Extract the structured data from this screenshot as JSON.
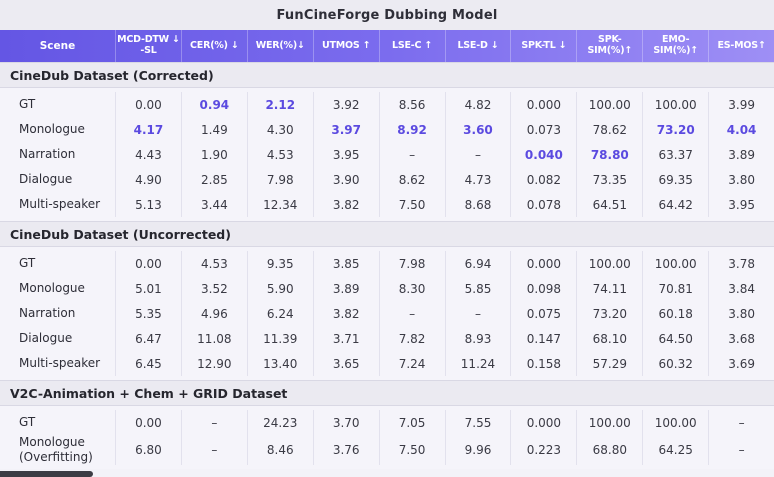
{
  "title": "FunCineForge Dubbing Model",
  "colors": {
    "accent": "#5b4ae0",
    "header_gradient_left": "#6456e4",
    "header_gradient_right": "#9e8ff5",
    "band_bg": "#ebeaf1",
    "rows_bg": "#f5f4fa"
  },
  "table": {
    "columns": [
      {
        "key": "scene",
        "label": "Scene"
      },
      {
        "key": "mcd-dtw-sl",
        "label": "MCD-DTW ↓\n-SL"
      },
      {
        "key": "cer",
        "label": "CER(%) ↓"
      },
      {
        "key": "wer",
        "label": "WER(%)↓"
      },
      {
        "key": "utmos",
        "label": "UTMOS ↑"
      },
      {
        "key": "lse-c",
        "label": "LSE-C ↑"
      },
      {
        "key": "lse-d",
        "label": "LSE-D ↓"
      },
      {
        "key": "spk-tl",
        "label": "SPK-TL ↓"
      },
      {
        "key": "spk-sim",
        "label": "SPK-SIM(%)↑"
      },
      {
        "key": "emo-sim",
        "label": "EMO-SIM(%)↑"
      },
      {
        "key": "es-mos",
        "label": "ES-MOS↑"
      }
    ],
    "sections": [
      {
        "header": "CineDub Dataset (Corrected)",
        "rows": [
          {
            "scene": "GT",
            "values": [
              "0.00",
              "0.94",
              "2.12",
              "3.92",
              "8.56",
              "4.82",
              "0.000",
              "100.00",
              "100.00",
              "3.99"
            ],
            "bold": [
              1,
              2
            ]
          },
          {
            "scene": "Monologue",
            "values": [
              "4.17",
              "1.49",
              "4.30",
              "3.97",
              "8.92",
              "3.60",
              "0.073",
              "78.62",
              "73.20",
              "4.04"
            ],
            "bold": [
              0,
              3,
              4,
              5,
              8,
              9
            ]
          },
          {
            "scene": "Narration",
            "values": [
              "4.43",
              "1.90",
              "4.53",
              "3.95",
              "–",
              "–",
              "0.040",
              "78.80",
              "63.37",
              "3.89"
            ],
            "bold": [
              6,
              7
            ]
          },
          {
            "scene": "Dialogue",
            "values": [
              "4.90",
              "2.85",
              "7.98",
              "3.90",
              "8.62",
              "4.73",
              "0.082",
              "73.35",
              "69.35",
              "3.80"
            ],
            "bold": []
          },
          {
            "scene": "Multi-speaker",
            "values": [
              "5.13",
              "3.44",
              "12.34",
              "3.82",
              "7.50",
              "8.68",
              "0.078",
              "64.51",
              "64.42",
              "3.95"
            ],
            "bold": []
          }
        ]
      },
      {
        "header": "CineDub Dataset (Uncorrected)",
        "rows": [
          {
            "scene": "GT",
            "values": [
              "0.00",
              "4.53",
              "9.35",
              "3.85",
              "7.98",
              "6.94",
              "0.000",
              "100.00",
              "100.00",
              "3.78"
            ],
            "bold": []
          },
          {
            "scene": "Monologue",
            "values": [
              "5.01",
              "3.52",
              "5.90",
              "3.89",
              "8.30",
              "5.85",
              "0.098",
              "74.11",
              "70.81",
              "3.84"
            ],
            "bold": []
          },
          {
            "scene": "Narration",
            "values": [
              "5.35",
              "4.96",
              "6.24",
              "3.82",
              "–",
              "–",
              "0.075",
              "73.20",
              "60.18",
              "3.80"
            ],
            "bold": []
          },
          {
            "scene": "Dialogue",
            "values": [
              "6.47",
              "11.08",
              "11.39",
              "3.71",
              "7.82",
              "8.93",
              "0.147",
              "68.10",
              "64.50",
              "3.68"
            ],
            "bold": []
          },
          {
            "scene": "Multi-speaker",
            "values": [
              "6.45",
              "12.90",
              "13.40",
              "3.65",
              "7.24",
              "11.24",
              "0.158",
              "57.29",
              "60.32",
              "3.69"
            ],
            "bold": []
          }
        ]
      },
      {
        "header": "V2C-Animation + Chem + GRID Dataset",
        "rows": [
          {
            "scene": "GT",
            "values": [
              "0.00",
              "–",
              "24.23",
              "3.70",
              "7.05",
              "7.55",
              "0.000",
              "100.00",
              "100.00",
              "–"
            ],
            "bold": []
          },
          {
            "scene": "Monologue\n(Overfitting)",
            "values": [
              "6.80",
              "–",
              "8.46",
              "3.76",
              "7.50",
              "9.96",
              "0.223",
              "68.80",
              "64.25",
              "–"
            ],
            "bold": []
          }
        ]
      }
    ]
  }
}
